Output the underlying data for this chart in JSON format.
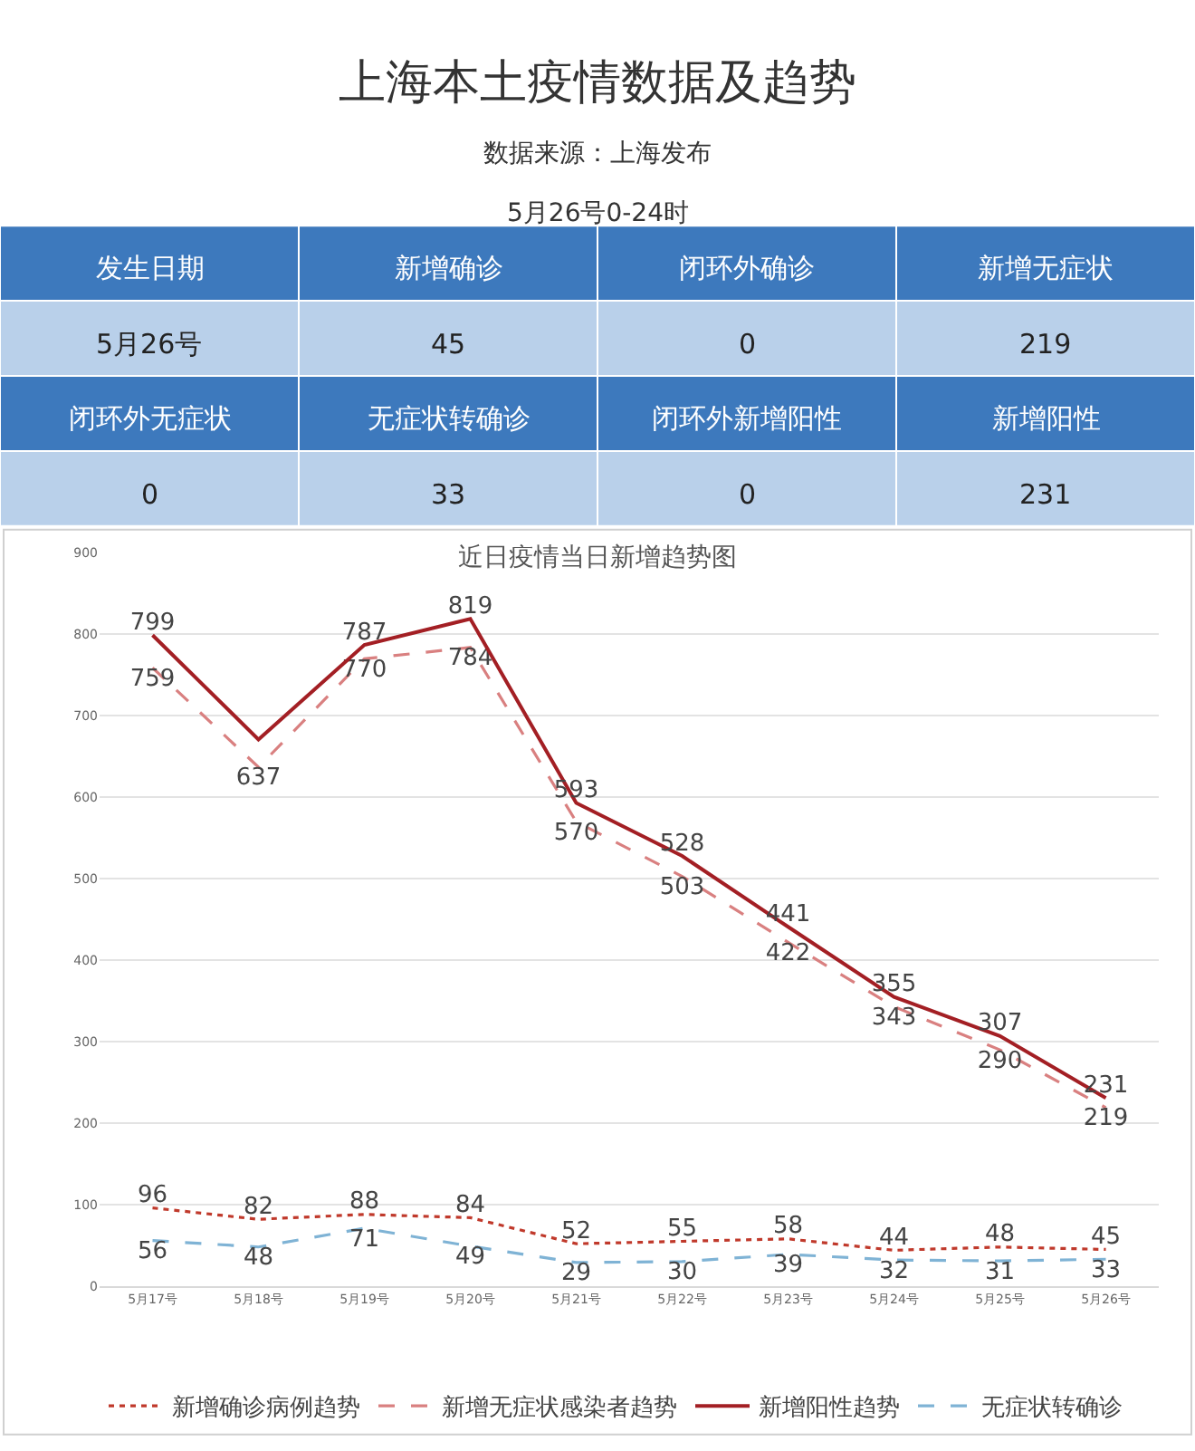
{
  "chart_data": [
    {
      "type": "other",
      "title": "上海本土疫情数据及趋势",
      "subtitle": "数据来源：上海发布",
      "annotations": [
        "5月26号0-24时",
        "发生日期",
        "新增确诊",
        "闭环外确诊",
        "新增无症状",
        "5月26号",
        "45",
        "0",
        "219",
        "闭环外无症状",
        "无症状转确诊",
        "闭环外新增阳性",
        "新增阳性",
        "0",
        "33",
        "0",
        "231"
      ]
    },
    {
      "type": "line",
      "title": "近日疫情当日新增趋势图",
      "categories": [
        "5月17号",
        "5月18号",
        "5月19号",
        "5月20号",
        "5月21号",
        "5月22号",
        "5月23号",
        "5月24号",
        "5月25号",
        "5月26号"
      ],
      "ylim": [
        0,
        900
      ],
      "yticks": [
        0,
        100,
        200,
        300,
        400,
        500,
        600,
        700,
        800,
        900
      ],
      "grid": "y",
      "legend": "bottom",
      "data_labels": true,
      "series": [
        {
          "name": "新增确诊病例趋势",
          "color": "#c0392b",
          "line_style": "dotted",
          "values": [
            96,
            82,
            88,
            84,
            52,
            55,
            58,
            44,
            48,
            45
          ]
        },
        {
          "name": "新增无症状感染者趋势",
          "color": "#d98080",
          "line_style": "dashed",
          "values": [
            759,
            637,
            770,
            784,
            570,
            503,
            422,
            343,
            290,
            219
          ]
        },
        {
          "name": "新增阳性趋势",
          "color": "#a31f24",
          "line_style": "solid",
          "values": [
            799,
            671,
            787,
            819,
            593,
            528,
            441,
            355,
            307,
            231
          ],
          "value_labels": [
            "799",
            null,
            "787",
            "819",
            "593",
            "528",
            "441",
            "355",
            "307",
            "231"
          ]
        },
        {
          "name": "无症状转确诊",
          "color": "#7fb3d5",
          "line_style": "dashed",
          "values": [
            56,
            48,
            71,
            49,
            29,
            30,
            39,
            32,
            31,
            33
          ]
        }
      ]
    }
  ]
}
